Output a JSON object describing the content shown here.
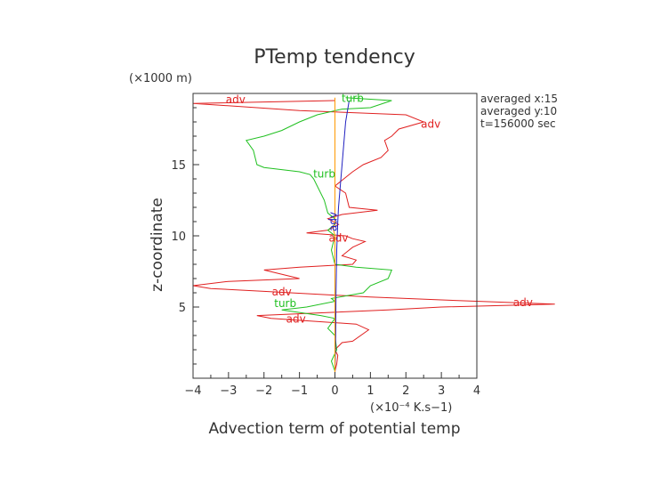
{
  "chart_data": {
    "type": "line",
    "title": "PTemp tendency",
    "xlabel": "Advection term of potential temp",
    "ylabel": "z-coordinate",
    "x_unit": "(×10⁻⁴ K.s−1)",
    "y_unit": "(×1000 m)",
    "xlim": [
      -4,
      4
    ],
    "ylim": [
      0,
      20
    ],
    "x_ticks": [
      -4,
      -3,
      -2,
      -1,
      0,
      1,
      2,
      3,
      4
    ],
    "y_ticks": [
      5,
      10,
      15
    ],
    "grid": false,
    "info_text": [
      "averaged  x:15",
      "averaged  y:10",
      "t=156000 sec"
    ],
    "colors": {
      "adv": "#e02020",
      "turb": "#20c020",
      "blue": "#2020c0",
      "orange": "#ff9900"
    },
    "series": [
      {
        "name": "adv",
        "color": "#e02020",
        "points": [
          [
            0.0,
            0.5
          ],
          [
            0.05,
            1.0
          ],
          [
            0.08,
            1.6
          ],
          [
            0.0,
            2.0
          ],
          [
            0.2,
            2.5
          ],
          [
            0.5,
            2.6
          ],
          [
            0.95,
            3.4
          ],
          [
            0.6,
            3.8
          ],
          [
            -1.8,
            4.2
          ],
          [
            -2.2,
            4.4
          ],
          [
            -0.3,
            4.6
          ],
          [
            1.5,
            4.8
          ],
          [
            3.0,
            5.0
          ],
          [
            6.2,
            5.2
          ],
          [
            3.0,
            5.5
          ],
          [
            1.0,
            5.7
          ],
          [
            -0.5,
            5.9
          ],
          [
            -2.0,
            6.1
          ],
          [
            -3.5,
            6.3
          ],
          [
            -4.0,
            6.5
          ],
          [
            -3.0,
            6.8
          ],
          [
            -1.0,
            7.0
          ],
          [
            -2.0,
            7.6
          ],
          [
            -1.0,
            7.8
          ],
          [
            0.5,
            8.0
          ],
          [
            0.6,
            8.3
          ],
          [
            0.2,
            8.6
          ],
          [
            0.5,
            9.2
          ],
          [
            0.85,
            9.6
          ],
          [
            0.5,
            9.8
          ],
          [
            0.3,
            10.0
          ],
          [
            -0.8,
            10.2
          ],
          [
            -0.2,
            10.4
          ],
          [
            0.1,
            10.8
          ],
          [
            -0.2,
            11.2
          ],
          [
            0.2,
            11.5
          ],
          [
            1.2,
            11.8
          ],
          [
            0.4,
            12.0
          ],
          [
            0.3,
            13.0
          ],
          [
            0.0,
            13.5
          ],
          [
            0.5,
            14.5
          ],
          [
            0.8,
            15.0
          ],
          [
            1.3,
            15.5
          ],
          [
            1.5,
            16.0
          ],
          [
            1.4,
            16.7
          ],
          [
            1.6,
            17.0
          ],
          [
            1.8,
            17.5
          ],
          [
            2.5,
            18.0
          ],
          [
            2.0,
            18.5
          ],
          [
            -1.0,
            18.8
          ],
          [
            -4.0,
            19.3
          ],
          [
            0.0,
            19.5
          ]
        ]
      },
      {
        "name": "turb",
        "color": "#20c020",
        "points": [
          [
            0.0,
            0.5
          ],
          [
            -0.1,
            1.2
          ],
          [
            0.05,
            2.0
          ],
          [
            0.0,
            3.0
          ],
          [
            -0.2,
            3.5
          ],
          [
            0.0,
            4.2
          ],
          [
            -0.4,
            4.4
          ],
          [
            -1.5,
            4.8
          ],
          [
            -0.8,
            5.0
          ],
          [
            0.0,
            5.4
          ],
          [
            -0.1,
            5.6
          ],
          [
            0.8,
            6.0
          ],
          [
            1.0,
            6.5
          ],
          [
            1.5,
            7.0
          ],
          [
            1.6,
            7.6
          ],
          [
            0.6,
            7.8
          ],
          [
            0.0,
            8.0
          ],
          [
            -0.1,
            9.0
          ],
          [
            0.0,
            10.0
          ],
          [
            -0.2,
            10.4
          ],
          [
            0.0,
            10.8
          ],
          [
            0.0,
            11.2
          ],
          [
            -0.2,
            11.6
          ],
          [
            -0.3,
            12.5
          ],
          [
            -0.6,
            14.0
          ],
          [
            -0.7,
            14.3
          ],
          [
            -1.0,
            14.5
          ],
          [
            -2.0,
            14.8
          ],
          [
            -2.2,
            15.0
          ],
          [
            -2.3,
            16.0
          ],
          [
            -2.5,
            16.7
          ],
          [
            -2.0,
            17.0
          ],
          [
            -1.5,
            17.4
          ],
          [
            -1.0,
            18.0
          ],
          [
            -0.5,
            18.5
          ],
          [
            0.2,
            18.9
          ],
          [
            1.0,
            19.0
          ],
          [
            1.6,
            19.5
          ],
          [
            0.3,
            19.7
          ]
        ]
      },
      {
        "name": "",
        "color": "#2020c0",
        "points": [
          [
            0.0,
            0.3
          ],
          [
            0.02,
            3.0
          ],
          [
            0.03,
            6.0
          ],
          [
            0.05,
            9.0
          ],
          [
            0.08,
            11.0
          ],
          [
            0.1,
            12.0
          ],
          [
            0.15,
            13.5
          ],
          [
            0.2,
            15.0
          ],
          [
            0.25,
            16.5
          ],
          [
            0.3,
            18.0
          ],
          [
            0.4,
            19.5
          ]
        ]
      },
      {
        "name": "",
        "color": "#ff9900",
        "points": [
          [
            0.0,
            0.3
          ],
          [
            0.0,
            10.0
          ],
          [
            -0.05,
            10.5
          ],
          [
            0.0,
            11.0
          ],
          [
            0.0,
            19.7
          ]
        ]
      }
    ],
    "annotations": [
      {
        "text": "adv",
        "x": -2.8,
        "y": 19.3,
        "color": "#e02020"
      },
      {
        "text": "turb",
        "x": 0.5,
        "y": 19.4,
        "color": "#20c020"
      },
      {
        "text": "adv",
        "x": 2.7,
        "y": 17.6,
        "color": "#e02020"
      },
      {
        "text": "turb",
        "x": -0.3,
        "y": 14.1,
        "color": "#20c020"
      },
      {
        "text": "adv",
        "x": 0.05,
        "y": 11.0,
        "color": "#2020c0",
        "rotate": -90
      },
      {
        "text": "adv",
        "x": 0.1,
        "y": 9.6,
        "color": "#e02020"
      },
      {
        "text": "adv",
        "x": -1.5,
        "y": 5.8,
        "color": "#e02020"
      },
      {
        "text": "adv",
        "x": 5.3,
        "y": 5.05,
        "color": "#e02020"
      },
      {
        "text": "turb",
        "x": -1.4,
        "y": 5.0,
        "color": "#20c020"
      },
      {
        "text": "adv",
        "x": -1.1,
        "y": 3.9,
        "color": "#e02020"
      }
    ]
  }
}
